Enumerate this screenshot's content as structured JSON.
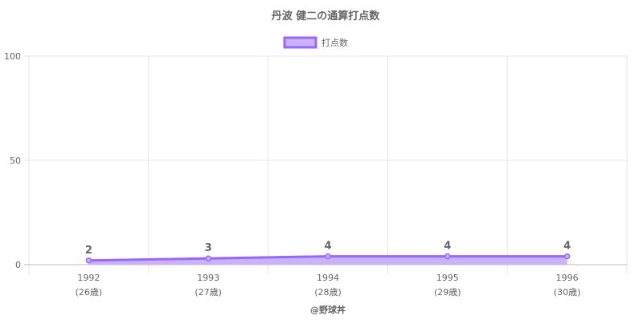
{
  "chart_data": {
    "type": "line",
    "title": "丹波 健二の通算打点数",
    "categories": [
      "1992",
      "1993",
      "1994",
      "1995",
      "1996"
    ],
    "category_sublabels": [
      "(26歳)",
      "(27歳)",
      "(28歳)",
      "(29歳)",
      "(30歳)"
    ],
    "series": [
      {
        "name": "打点数",
        "values": [
          2,
          3,
          4,
          4,
          4
        ]
      }
    ],
    "ylim": [
      0,
      100
    ],
    "yticks": [
      "0",
      "50",
      "100"
    ],
    "grid": true,
    "filled": true,
    "data_labels": true,
    "legend_position": "top",
    "line_color": "#9966ff",
    "fill_color": "#c9b3ff",
    "xlabel": "@野球丼",
    "ylabel": ""
  }
}
